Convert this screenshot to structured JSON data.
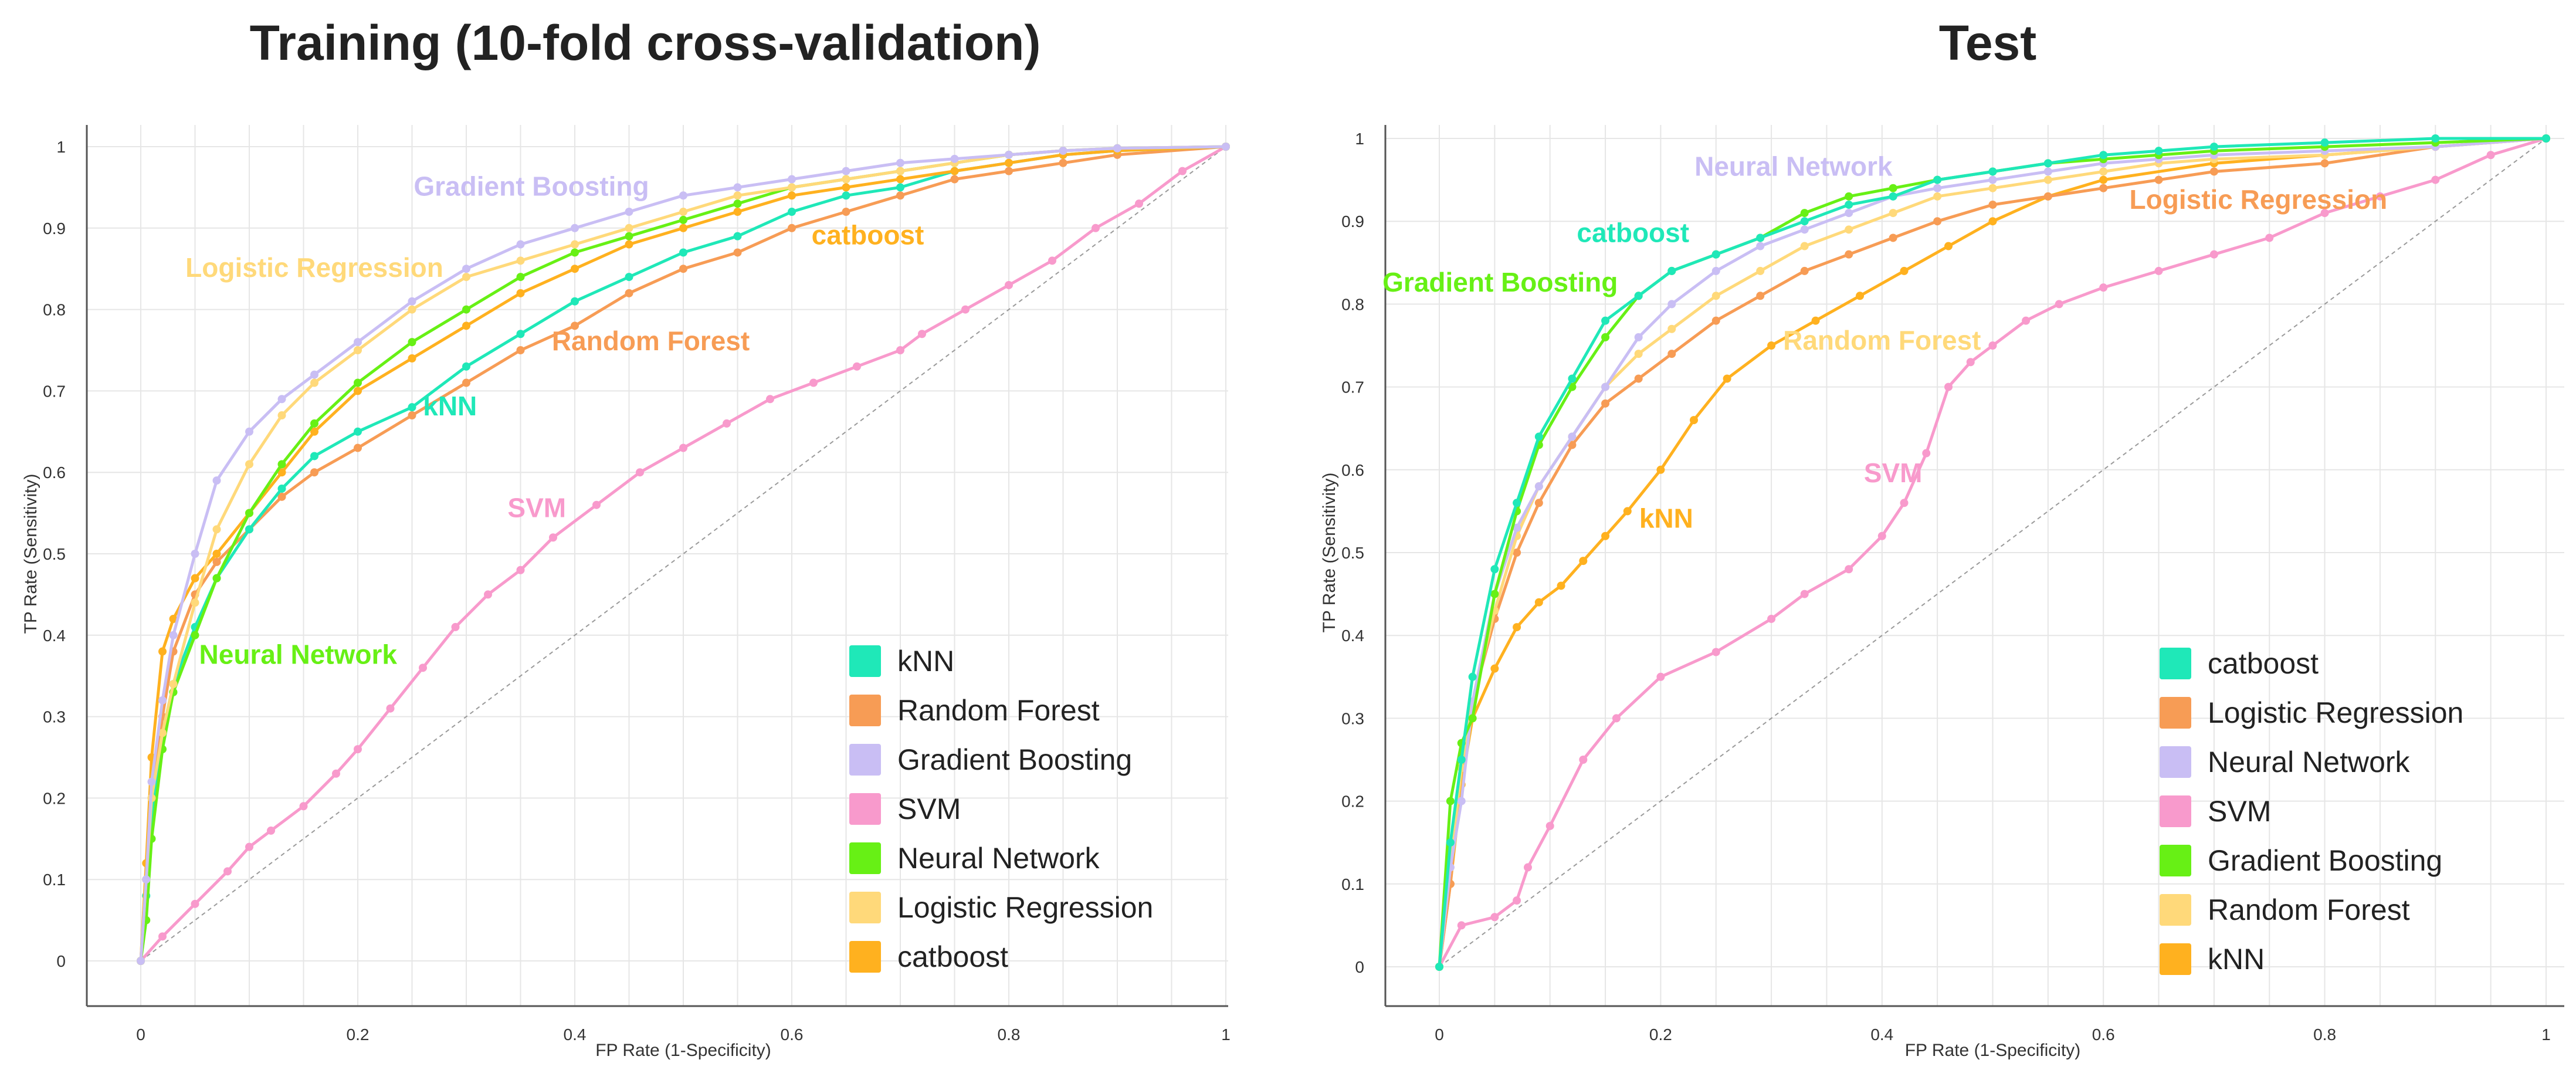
{
  "colors": {
    "kNN": "#FFB11F",
    "catboost_curve": "#1FE8B8",
    "Random Forest": "#F79C55",
    "Gradient Boosting": "#C9BEF4",
    "SVM": "#F89ACC",
    "Neural Network": "#67F015",
    "Logistic Regression": "#FFD97A",
    "catboost": "#FFB11F"
  },
  "chart_data": [
    {
      "type": "line",
      "title": "Training (10-fold cross-validation)",
      "xlabel": "FP Rate (1-Specificity)",
      "ylabel": "TP Rate (Sensitivity)",
      "xlim": [
        0,
        1
      ],
      "ylim": [
        0,
        1
      ],
      "xticks": [
        "0",
        "0.2",
        "0.4",
        "0.6",
        "0.8",
        "1"
      ],
      "yticks": [
        "0",
        "0.1",
        "0.2",
        "0.3",
        "0.4",
        "0.5",
        "0.6",
        "0.7",
        "0.8",
        "0.9",
        "1"
      ],
      "grid": true,
      "legend_position": "bottom-right",
      "legend": [
        {
          "name": "kNN",
          "color": "#1FE8B8"
        },
        {
          "name": "Random Forest",
          "color": "#F79C55"
        },
        {
          "name": "Gradient Boosting",
          "color": "#C9BEF4"
        },
        {
          "name": "SVM",
          "color": "#F89ACC"
        },
        {
          "name": "Neural Network",
          "color": "#67F015"
        },
        {
          "name": "Logistic Regression",
          "color": "#FFD97A"
        },
        {
          "name": "catboost",
          "color": "#FFB11F"
        }
      ],
      "annotations": [
        {
          "text": "Gradient Boosting",
          "color": "#C9BEF4",
          "x": 0.36,
          "y": 0.94
        },
        {
          "text": "Logistic Regression",
          "color": "#FFD97A",
          "x": 0.16,
          "y": 0.84
        },
        {
          "text": "catboost",
          "color": "#FFB11F",
          "x": 0.67,
          "y": 0.88
        },
        {
          "text": "Random Forest",
          "color": "#F79C55",
          "x": 0.47,
          "y": 0.75
        },
        {
          "text": "kNN",
          "color": "#1FE8B8",
          "x": 0.285,
          "y": 0.67
        },
        {
          "text": "SVM",
          "color": "#F89ACC",
          "x": 0.365,
          "y": 0.545
        },
        {
          "text": "Neural Network",
          "color": "#67F015",
          "x": 0.145,
          "y": 0.365
        }
      ],
      "series": [
        {
          "name": "SVM",
          "color": "#F89ACC",
          "x": [
            0,
            0.02,
            0.05,
            0.08,
            0.1,
            0.12,
            0.15,
            0.18,
            0.2,
            0.23,
            0.26,
            0.29,
            0.32,
            0.35,
            0.38,
            0.42,
            0.46,
            0.5,
            0.54,
            0.58,
            0.62,
            0.66,
            0.7,
            0.72,
            0.76,
            0.8,
            0.84,
            0.88,
            0.92,
            0.96,
            1
          ],
          "y": [
            0,
            0.03,
            0.07,
            0.11,
            0.14,
            0.16,
            0.19,
            0.23,
            0.26,
            0.31,
            0.36,
            0.41,
            0.45,
            0.48,
            0.52,
            0.56,
            0.6,
            0.63,
            0.66,
            0.69,
            0.71,
            0.73,
            0.75,
            0.77,
            0.8,
            0.83,
            0.86,
            0.9,
            0.93,
            0.97,
            1
          ]
        },
        {
          "name": "Random Forest",
          "color": "#F79C55",
          "x": [
            0,
            0.005,
            0.01,
            0.02,
            0.03,
            0.05,
            0.07,
            0.1,
            0.13,
            0.16,
            0.2,
            0.25,
            0.3,
            0.35,
            0.4,
            0.45,
            0.5,
            0.55,
            0.6,
            0.65,
            0.7,
            0.75,
            0.8,
            0.85,
            0.9,
            1
          ],
          "y": [
            0,
            0.1,
            0.2,
            0.3,
            0.38,
            0.45,
            0.49,
            0.53,
            0.57,
            0.6,
            0.63,
            0.67,
            0.71,
            0.75,
            0.78,
            0.82,
            0.85,
            0.87,
            0.9,
            0.92,
            0.94,
            0.96,
            0.97,
            0.98,
            0.99,
            1
          ]
        },
        {
          "name": "kNN",
          "color": "#1FE8B8",
          "x": [
            0,
            0.005,
            0.01,
            0.02,
            0.03,
            0.05,
            0.07,
            0.1,
            0.13,
            0.16,
            0.2,
            0.25,
            0.3,
            0.35,
            0.4,
            0.45,
            0.5,
            0.55,
            0.6,
            0.65,
            0.7,
            0.75,
            0.8,
            0.85,
            0.9,
            1
          ],
          "y": [
            0,
            0.08,
            0.18,
            0.28,
            0.34,
            0.41,
            0.47,
            0.53,
            0.58,
            0.62,
            0.65,
            0.68,
            0.73,
            0.77,
            0.81,
            0.84,
            0.87,
            0.89,
            0.92,
            0.94,
            0.95,
            0.97,
            0.98,
            0.99,
            0.995,
            1
          ]
        },
        {
          "name": "catboost",
          "color": "#FFB11F",
          "x": [
            0,
            0.005,
            0.01,
            0.02,
            0.03,
            0.05,
            0.07,
            0.1,
            0.13,
            0.16,
            0.2,
            0.25,
            0.3,
            0.35,
            0.4,
            0.45,
            0.5,
            0.55,
            0.6,
            0.65,
            0.7,
            0.75,
            0.8,
            0.85,
            0.9,
            1
          ],
          "y": [
            0,
            0.12,
            0.25,
            0.38,
            0.42,
            0.47,
            0.5,
            0.55,
            0.6,
            0.65,
            0.7,
            0.74,
            0.78,
            0.82,
            0.85,
            0.88,
            0.9,
            0.92,
            0.94,
            0.95,
            0.96,
            0.97,
            0.98,
            0.99,
            0.995,
            1
          ]
        },
        {
          "name": "Neural Network",
          "color": "#67F015",
          "x": [
            0,
            0.005,
            0.01,
            0.02,
            0.03,
            0.05,
            0.07,
            0.1,
            0.13,
            0.16,
            0.2,
            0.25,
            0.3,
            0.35,
            0.4,
            0.45,
            0.5,
            0.55,
            0.6,
            0.65,
            0.7,
            0.75,
            0.8,
            0.85,
            0.9,
            1
          ],
          "y": [
            0,
            0.05,
            0.15,
            0.26,
            0.33,
            0.4,
            0.47,
            0.55,
            0.61,
            0.66,
            0.71,
            0.76,
            0.8,
            0.84,
            0.87,
            0.89,
            0.91,
            0.93,
            0.95,
            0.96,
            0.97,
            0.98,
            0.99,
            0.995,
            0.998,
            1
          ]
        },
        {
          "name": "Logistic Regression",
          "color": "#FFD97A",
          "x": [
            0,
            0.005,
            0.01,
            0.02,
            0.03,
            0.05,
            0.07,
            0.1,
            0.13,
            0.16,
            0.2,
            0.25,
            0.3,
            0.35,
            0.4,
            0.45,
            0.5,
            0.55,
            0.6,
            0.65,
            0.7,
            0.75,
            0.8,
            0.85,
            0.9,
            1
          ],
          "y": [
            0,
            0.1,
            0.2,
            0.28,
            0.34,
            0.44,
            0.53,
            0.61,
            0.67,
            0.71,
            0.75,
            0.8,
            0.84,
            0.86,
            0.88,
            0.9,
            0.92,
            0.94,
            0.95,
            0.96,
            0.97,
            0.98,
            0.99,
            0.995,
            0.998,
            1
          ]
        },
        {
          "name": "Gradient Boosting",
          "color": "#C9BEF4",
          "x": [
            0,
            0.005,
            0.01,
            0.02,
            0.03,
            0.05,
            0.07,
            0.1,
            0.13,
            0.16,
            0.2,
            0.25,
            0.3,
            0.35,
            0.4,
            0.45,
            0.5,
            0.55,
            0.6,
            0.65,
            0.7,
            0.75,
            0.8,
            0.85,
            0.9,
            1
          ],
          "y": [
            0,
            0.1,
            0.22,
            0.32,
            0.4,
            0.5,
            0.59,
            0.65,
            0.69,
            0.72,
            0.76,
            0.81,
            0.85,
            0.88,
            0.9,
            0.92,
            0.94,
            0.95,
            0.96,
            0.97,
            0.98,
            0.985,
            0.99,
            0.995,
            0.998,
            1
          ]
        }
      ]
    },
    {
      "type": "line",
      "title": "Test",
      "xlabel": "FP Rate (1-Specificity)",
      "ylabel": "TP Rate (Sensitivity)",
      "xlim": [
        0,
        1
      ],
      "ylim": [
        0,
        1
      ],
      "xticks": [
        "0",
        "0.2",
        "0.4",
        "0.6",
        "0.8",
        "1"
      ],
      "yticks": [
        "0",
        "0.1",
        "0.2",
        "0.3",
        "0.4",
        "0.5",
        "0.6",
        "0.7",
        "0.8",
        "0.9",
        "1"
      ],
      "grid": true,
      "legend_position": "bottom-right",
      "legend": [
        {
          "name": "catboost",
          "color": "#1FE8B8"
        },
        {
          "name": "Logistic Regression",
          "color": "#F79C55"
        },
        {
          "name": "Neural Network",
          "color": "#C9BEF4"
        },
        {
          "name": "SVM",
          "color": "#F89ACC"
        },
        {
          "name": "Gradient Boosting",
          "color": "#67F015"
        },
        {
          "name": "Random Forest",
          "color": "#FFD97A"
        },
        {
          "name": "kNN",
          "color": "#FFB11F"
        }
      ],
      "annotations": [
        {
          "text": "Neural Network",
          "color": "#C9BEF4",
          "x": 0.32,
          "y": 0.955
        },
        {
          "text": "catboost",
          "color": "#1FE8B8",
          "x": 0.175,
          "y": 0.875
        },
        {
          "text": "Gradient Boosting",
          "color": "#67F015",
          "x": 0.055,
          "y": 0.815
        },
        {
          "text": "Logistic Regression",
          "color": "#F79C55",
          "x": 0.74,
          "y": 0.915
        },
        {
          "text": "Random Forest",
          "color": "#FFD97A",
          "x": 0.4,
          "y": 0.745
        },
        {
          "text": "SVM",
          "color": "#F89ACC",
          "x": 0.41,
          "y": 0.585
        },
        {
          "text": "kNN",
          "color": "#FFB11F",
          "x": 0.205,
          "y": 0.53
        }
      ],
      "series": [
        {
          "name": "SVM",
          "color": "#F89ACC",
          "x": [
            0,
            0.02,
            0.05,
            0.07,
            0.08,
            0.1,
            0.13,
            0.16,
            0.2,
            0.25,
            0.3,
            0.33,
            0.37,
            0.4,
            0.42,
            0.44,
            0.46,
            0.48,
            0.5,
            0.53,
            0.56,
            0.6,
            0.65,
            0.7,
            0.75,
            0.8,
            0.85,
            0.9,
            0.95,
            1
          ],
          "y": [
            0,
            0.05,
            0.06,
            0.08,
            0.12,
            0.17,
            0.25,
            0.3,
            0.35,
            0.38,
            0.42,
            0.45,
            0.48,
            0.52,
            0.56,
            0.62,
            0.7,
            0.73,
            0.75,
            0.78,
            0.8,
            0.82,
            0.84,
            0.86,
            0.88,
            0.91,
            0.93,
            0.95,
            0.98,
            1
          ]
        },
        {
          "name": "kNN",
          "color": "#FFB11F",
          "x": [
            0,
            0.01,
            0.02,
            0.03,
            0.05,
            0.07,
            0.09,
            0.11,
            0.13,
            0.15,
            0.17,
            0.2,
            0.23,
            0.26,
            0.3,
            0.34,
            0.38,
            0.42,
            0.46,
            0.5,
            0.55,
            0.6,
            0.7,
            0.8,
            0.9,
            1
          ],
          "y": [
            0,
            0.1,
            0.22,
            0.3,
            0.36,
            0.41,
            0.44,
            0.46,
            0.49,
            0.52,
            0.55,
            0.6,
            0.66,
            0.71,
            0.75,
            0.78,
            0.81,
            0.84,
            0.87,
            0.9,
            0.93,
            0.95,
            0.97,
            0.98,
            0.99,
            1
          ]
        },
        {
          "name": "Logistic Regression",
          "color": "#F79C55",
          "x": [
            0,
            0.01,
            0.02,
            0.03,
            0.05,
            0.07,
            0.09,
            0.12,
            0.15,
            0.18,
            0.21,
            0.25,
            0.29,
            0.33,
            0.37,
            0.41,
            0.45,
            0.5,
            0.55,
            0.6,
            0.65,
            0.7,
            0.8,
            0.9,
            1
          ],
          "y": [
            0,
            0.1,
            0.25,
            0.32,
            0.42,
            0.5,
            0.56,
            0.63,
            0.68,
            0.71,
            0.74,
            0.78,
            0.81,
            0.84,
            0.86,
            0.88,
            0.9,
            0.92,
            0.93,
            0.94,
            0.95,
            0.96,
            0.97,
            0.99,
            1
          ]
        },
        {
          "name": "Random Forest",
          "color": "#FFD97A",
          "x": [
            0,
            0.01,
            0.02,
            0.03,
            0.05,
            0.07,
            0.09,
            0.12,
            0.15,
            0.18,
            0.21,
            0.25,
            0.29,
            0.33,
            0.37,
            0.41,
            0.45,
            0.5,
            0.55,
            0.6,
            0.65,
            0.7,
            0.8,
            0.9,
            1
          ],
          "y": [
            0,
            0.12,
            0.24,
            0.32,
            0.43,
            0.52,
            0.58,
            0.64,
            0.7,
            0.74,
            0.77,
            0.81,
            0.84,
            0.87,
            0.89,
            0.91,
            0.93,
            0.94,
            0.95,
            0.96,
            0.97,
            0.975,
            0.98,
            0.99,
            1
          ]
        },
        {
          "name": "Neural Network",
          "color": "#C9BEF4",
          "x": [
            0,
            0.01,
            0.02,
            0.03,
            0.05,
            0.07,
            0.09,
            0.12,
            0.15,
            0.18,
            0.21,
            0.25,
            0.29,
            0.33,
            0.37,
            0.41,
            0.45,
            0.5,
            0.55,
            0.6,
            0.65,
            0.7,
            0.8,
            0.9,
            1
          ],
          "y": [
            0,
            0.12,
            0.2,
            0.32,
            0.45,
            0.53,
            0.58,
            0.64,
            0.7,
            0.76,
            0.8,
            0.84,
            0.87,
            0.89,
            0.91,
            0.93,
            0.94,
            0.95,
            0.96,
            0.97,
            0.975,
            0.98,
            0.985,
            0.99,
            1
          ]
        },
        {
          "name": "Gradient Boosting",
          "color": "#67F015",
          "x": [
            0,
            0.01,
            0.02,
            0.03,
            0.05,
            0.07,
            0.09,
            0.12,
            0.15,
            0.18,
            0.21,
            0.25,
            0.29,
            0.33,
            0.37,
            0.41,
            0.45,
            0.5,
            0.55,
            0.6,
            0.65,
            0.7,
            0.8,
            0.9,
            1
          ],
          "y": [
            0,
            0.2,
            0.27,
            0.3,
            0.45,
            0.55,
            0.63,
            0.7,
            0.76,
            0.81,
            0.84,
            0.86,
            0.88,
            0.91,
            0.93,
            0.94,
            0.95,
            0.96,
            0.97,
            0.975,
            0.98,
            0.985,
            0.99,
            0.995,
            1
          ]
        },
        {
          "name": "catboost",
          "color": "#1FE8B8",
          "x": [
            0,
            0.01,
            0.02,
            0.03,
            0.05,
            0.07,
            0.09,
            0.12,
            0.15,
            0.18,
            0.21,
            0.25,
            0.29,
            0.33,
            0.37,
            0.41,
            0.45,
            0.5,
            0.55,
            0.6,
            0.65,
            0.7,
            0.8,
            0.9,
            1
          ],
          "y": [
            0,
            0.15,
            0.25,
            0.35,
            0.48,
            0.56,
            0.64,
            0.71,
            0.78,
            0.81,
            0.84,
            0.86,
            0.88,
            0.9,
            0.92,
            0.93,
            0.95,
            0.96,
            0.97,
            0.98,
            0.985,
            0.99,
            0.995,
            1,
            1
          ]
        }
      ]
    }
  ]
}
